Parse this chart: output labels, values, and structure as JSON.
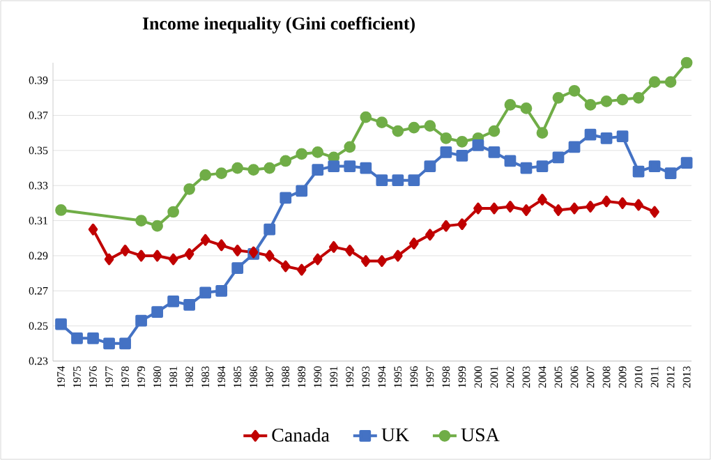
{
  "chart_data": {
    "type": "line",
    "title": "Income inequality (Gini coefficient)",
    "categories": [
      "1974",
      "1975",
      "1976",
      "1977",
      "1978",
      "1979",
      "1980",
      "1981",
      "1982",
      "1983",
      "1984",
      "1985",
      "1986",
      "1987",
      "1988",
      "1989",
      "1990",
      "1991",
      "1992",
      "1993",
      "1994",
      "1995",
      "1996",
      "1997",
      "1998",
      "1999",
      "2000",
      "2001",
      "2002",
      "2003",
      "2004",
      "2005",
      "2006",
      "2007",
      "2008",
      "2009",
      "2010",
      "2011",
      "2012",
      "2013"
    ],
    "series": [
      {
        "name": "Canada",
        "color": "#c00000",
        "marker": "diamond",
        "values": [
          null,
          null,
          0.305,
          0.288,
          0.293,
          0.29,
          0.29,
          0.288,
          0.291,
          0.299,
          0.296,
          0.293,
          0.292,
          0.29,
          0.284,
          0.282,
          0.288,
          0.295,
          0.293,
          0.287,
          0.287,
          0.29,
          0.297,
          0.302,
          0.307,
          0.308,
          0.317,
          0.317,
          0.318,
          0.316,
          0.322,
          0.316,
          0.317,
          0.318,
          0.321,
          0.32,
          0.319,
          0.315,
          null,
          null
        ]
      },
      {
        "name": "UK",
        "color": "#4472c4",
        "marker": "square",
        "values": [
          0.251,
          0.243,
          0.243,
          0.24,
          0.24,
          0.253,
          0.258,
          0.264,
          0.262,
          0.269,
          0.27,
          0.283,
          0.291,
          0.305,
          0.323,
          0.327,
          0.339,
          0.341,
          0.341,
          0.34,
          0.333,
          0.333,
          0.333,
          0.341,
          0.349,
          0.347,
          0.353,
          0.349,
          0.344,
          0.34,
          0.341,
          0.346,
          0.352,
          0.359,
          0.357,
          0.358,
          0.338,
          0.341,
          0.337,
          0.343
        ]
      },
      {
        "name": "USA",
        "color": "#70ad47",
        "marker": "circle",
        "values": [
          0.316,
          null,
          null,
          null,
          null,
          0.31,
          0.307,
          0.315,
          0.328,
          0.336,
          0.337,
          0.34,
          0.339,
          0.34,
          0.344,
          0.348,
          0.349,
          0.346,
          0.352,
          0.369,
          0.366,
          0.361,
          0.363,
          0.364,
          0.357,
          0.355,
          0.357,
          0.361,
          0.376,
          0.374,
          0.36,
          0.38,
          0.384,
          0.376,
          0.378,
          0.379,
          0.38,
          0.389,
          0.389,
          0.4
        ]
      }
    ],
    "ylim": [
      0.23,
      0.4
    ],
    "yticks": [
      0.23,
      0.25,
      0.27,
      0.29,
      0.31,
      0.33,
      0.35,
      0.37,
      0.39
    ],
    "grid": "y",
    "legend": "bottom"
  }
}
